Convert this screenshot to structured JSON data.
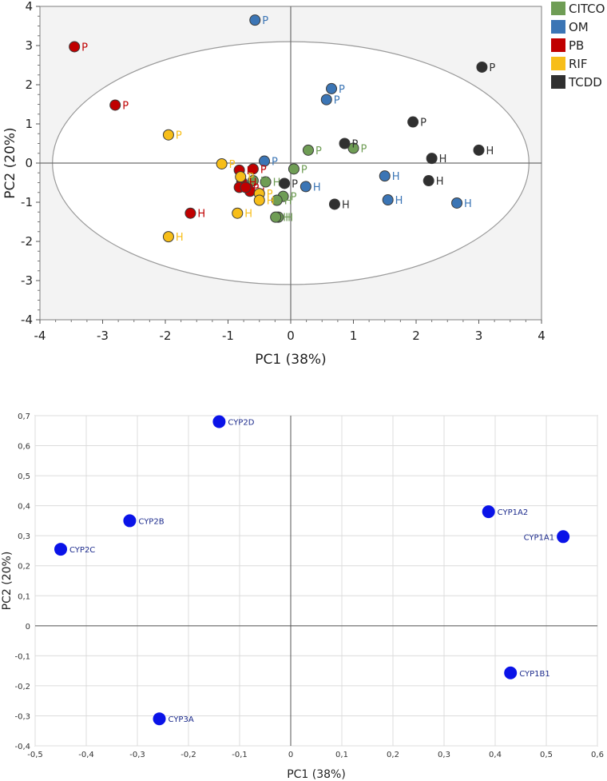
{
  "chart_data": [
    {
      "type": "scatter",
      "title": "",
      "xlabel": "PC1 (38%)",
      "ylabel": "PC2 (20%)",
      "xlim": [
        -4,
        4
      ],
      "ylim": [
        -4,
        4
      ],
      "xticks": [
        -4,
        -3,
        -2,
        -1,
        0,
        1,
        2,
        3,
        4
      ],
      "yticks": [
        -4,
        -3,
        -2,
        -1,
        0,
        1,
        2,
        3,
        4
      ],
      "grid": false,
      "confidence_ellipse": {
        "center": [
          0,
          0
        ],
        "semi_axis_x": 3.8,
        "semi_axis_y": 3.1
      },
      "legend_position": "right",
      "series": [
        {
          "name": "CITCO",
          "color": "#6f9d55",
          "points": [
            {
              "x": 0.28,
              "y": 0.33,
              "label": "P"
            },
            {
              "x": 1.0,
              "y": 0.38,
              "label": "P"
            },
            {
              "x": 0.05,
              "y": -0.15,
              "label": "P"
            },
            {
              "x": -0.12,
              "y": -0.85,
              "label": "P"
            },
            {
              "x": -0.22,
              "y": -0.95,
              "label": "H"
            },
            {
              "x": -0.4,
              "y": -0.48,
              "label": "H"
            },
            {
              "x": -0.6,
              "y": -0.45,
              "label": "H"
            },
            {
              "x": -0.2,
              "y": -1.38,
              "label": "H"
            },
            {
              "x": -0.24,
              "y": -1.38,
              "label": "H"
            }
          ]
        },
        {
          "name": "OM",
          "color": "#3b75b5",
          "points": [
            {
              "x": -0.57,
              "y": 3.65,
              "label": "P"
            },
            {
              "x": 0.65,
              "y": 1.9,
              "label": "P"
            },
            {
              "x": 0.57,
              "y": 1.62,
              "label": "P"
            },
            {
              "x": -0.42,
              "y": 0.05,
              "label": "P"
            },
            {
              "x": 0.24,
              "y": -0.6,
              "label": "H"
            },
            {
              "x": 1.5,
              "y": -0.33,
              "label": "H"
            },
            {
              "x": 1.55,
              "y": -0.94,
              "label": "H"
            },
            {
              "x": 2.65,
              "y": -1.02,
              "label": "H"
            }
          ]
        },
        {
          "name": "PB",
          "color": "#c00000",
          "points": [
            {
              "x": -3.45,
              "y": 2.97,
              "label": "P"
            },
            {
              "x": -2.8,
              "y": 1.48,
              "label": "P"
            },
            {
              "x": -0.6,
              "y": -0.15,
              "label": "P"
            },
            {
              "x": -0.82,
              "y": -0.18,
              "label": "H"
            },
            {
              "x": -0.78,
              "y": -0.48,
              "label": "H"
            },
            {
              "x": -0.65,
              "y": -0.72,
              "label": "H"
            },
            {
              "x": -0.82,
              "y": -0.62,
              "label": "P"
            },
            {
              "x": -0.72,
              "y": -0.62,
              "label": "P"
            },
            {
              "x": -1.6,
              "y": -1.28,
              "label": "H"
            }
          ]
        },
        {
          "name": "RIF",
          "color": "#f7be19",
          "points": [
            {
              "x": -1.95,
              "y": 0.72,
              "label": "P"
            },
            {
              "x": -1.1,
              "y": -0.02,
              "label": "P"
            },
            {
              "x": -0.8,
              "y": -0.35,
              "label": "P"
            },
            {
              "x": -0.5,
              "y": -0.78,
              "label": "P"
            },
            {
              "x": -0.5,
              "y": -0.95,
              "label": "H"
            },
            {
              "x": -0.85,
              "y": -1.28,
              "label": "H"
            },
            {
              "x": -1.95,
              "y": -1.88,
              "label": "H"
            }
          ]
        },
        {
          "name": "TCDD",
          "color": "#303030",
          "points": [
            {
              "x": 3.05,
              "y": 2.45,
              "label": "P"
            },
            {
              "x": 1.95,
              "y": 1.05,
              "label": "P"
            },
            {
              "x": 0.86,
              "y": 0.5,
              "label": "P"
            },
            {
              "x": -0.1,
              "y": -0.52,
              "label": "P"
            },
            {
              "x": 2.25,
              "y": 0.12,
              "label": "H"
            },
            {
              "x": 3.0,
              "y": 0.33,
              "label": "H"
            },
            {
              "x": 2.2,
              "y": -0.45,
              "label": "H"
            },
            {
              "x": 0.7,
              "y": -1.05,
              "label": "H"
            }
          ]
        }
      ]
    },
    {
      "type": "scatter",
      "title": "",
      "xlabel": "PC1 (38%)",
      "ylabel": "PC2 (20%)",
      "xlim": [
        -0.5,
        0.6
      ],
      "ylim": [
        -0.4,
        0.7
      ],
      "xticks": [
        "-0,5",
        "-0,4",
        "-0,3",
        "-0,2",
        "-0,1",
        "0",
        "0,1",
        "0,2",
        "0,3",
        "0,4",
        "0,5",
        "0,6"
      ],
      "yticks": [
        "0,7",
        "0,6",
        "0,5",
        "0,4",
        "0,3",
        "0,2",
        "0,1",
        "0",
        "-0,1",
        "-0,2",
        "-0,3",
        "-0,4"
      ],
      "grid": true,
      "point_color": "#0a13e8",
      "label_color": "#1b2a8c",
      "points": [
        {
          "name": "CYP2D",
          "x": -0.14,
          "y": 0.68,
          "label_side": "right"
        },
        {
          "name": "CYP2B",
          "x": -0.315,
          "y": 0.35,
          "label_side": "right"
        },
        {
          "name": "CYP2C",
          "x": -0.45,
          "y": 0.255,
          "label_side": "right"
        },
        {
          "name": "CYP3A",
          "x": -0.257,
          "y": -0.31,
          "label_side": "right"
        },
        {
          "name": "CYP1A2",
          "x": 0.387,
          "y": 0.38,
          "label_side": "right"
        },
        {
          "name": "CYP1A1",
          "x": 0.533,
          "y": 0.297,
          "label_side": "left"
        },
        {
          "name": "CYP1B1",
          "x": 0.43,
          "y": -0.157,
          "label_side": "right"
        }
      ]
    }
  ]
}
